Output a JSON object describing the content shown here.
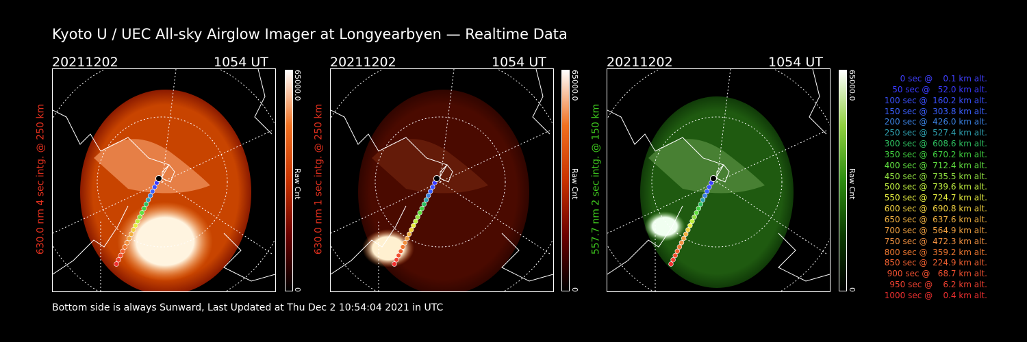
{
  "title": "Kyoto U / UEC All-sky Airglow Imager at Longyearbyen — Realtime Data",
  "footer": "Bottom side is always Sunward, Last Updated at Thu Dec  2 10:54:04 2021 in UTC",
  "panels": [
    {
      "date": "20211202",
      "time": "1054 UT",
      "label": "630.0 nm 4 sec intg. @ 250 km",
      "label_color": "#e0301e",
      "cbar_top": "65000.0",
      "cbar_unit": "Raw Cnt",
      "cbar_bottom": "0",
      "scheme": "red-bright"
    },
    {
      "date": "20211202",
      "time": "1054 UT",
      "label": "630.0 nm 1 sec intg. @ 250 km",
      "label_color": "#e0301e",
      "cbar_top": "65000.0",
      "cbar_unit": "Raw Cnt",
      "cbar_bottom": "0",
      "scheme": "red-dark"
    },
    {
      "date": "20211202",
      "time": "1054 UT",
      "label": "557.7 nm 2 sec intg. @ 150 km",
      "label_color": "#3ec81e",
      "cbar_top": "65000.0",
      "cbar_unit": "Raw Cnt",
      "cbar_bottom": "0",
      "scheme": "green"
    }
  ],
  "legend": [
    {
      "text": "   0 sec @    0.1 km alt.",
      "color": "#4040ff"
    },
    {
      "text": "  50 sec @   52.0 km alt.",
      "color": "#3a3aff"
    },
    {
      "text": " 100 sec @  160.2 km alt.",
      "color": "#3a50ff"
    },
    {
      "text": " 150 sec @  303.8 km alt.",
      "color": "#3a60ff"
    },
    {
      "text": " 200 sec @  426.0 km alt.",
      "color": "#3a80e0"
    },
    {
      "text": " 250 sec @  527.4 km alt.",
      "color": "#2ea0b0"
    },
    {
      "text": " 300 sec @  608.6 km alt.",
      "color": "#2ec060"
    },
    {
      "text": " 350 sec @  670.2 km alt.",
      "color": "#40d040"
    },
    {
      "text": " 400 sec @  712.4 km alt.",
      "color": "#60e040"
    },
    {
      "text": " 450 sec @  735.5 km alt.",
      "color": "#90e040"
    },
    {
      "text": " 500 sec @  739.6 km alt.",
      "color": "#c0f040"
    },
    {
      "text": " 550 sec @  724.7 km alt.",
      "color": "#e8f040"
    },
    {
      "text": " 600 sec @  690.8 km alt.",
      "color": "#f0d040"
    },
    {
      "text": " 650 sec @  637.6 km alt.",
      "color": "#f0b040"
    },
    {
      "text": " 700 sec @  564.9 km alt.",
      "color": "#f0a040"
    },
    {
      "text": " 750 sec @  472.3 km alt.",
      "color": "#f09040"
    },
    {
      "text": " 800 sec @  359.2 km alt.",
      "color": "#f07830"
    },
    {
      "text": " 850 sec @  224.9 km alt.",
      "color": "#f06030"
    },
    {
      "text": " 900 sec @   68.7 km alt.",
      "color": "#f05030"
    },
    {
      "text": " 950 sec @    6.2 km alt.",
      "color": "#f04030"
    },
    {
      "text": "1000 sec @    0.4 km alt.",
      "color": "#f03030"
    }
  ]
}
